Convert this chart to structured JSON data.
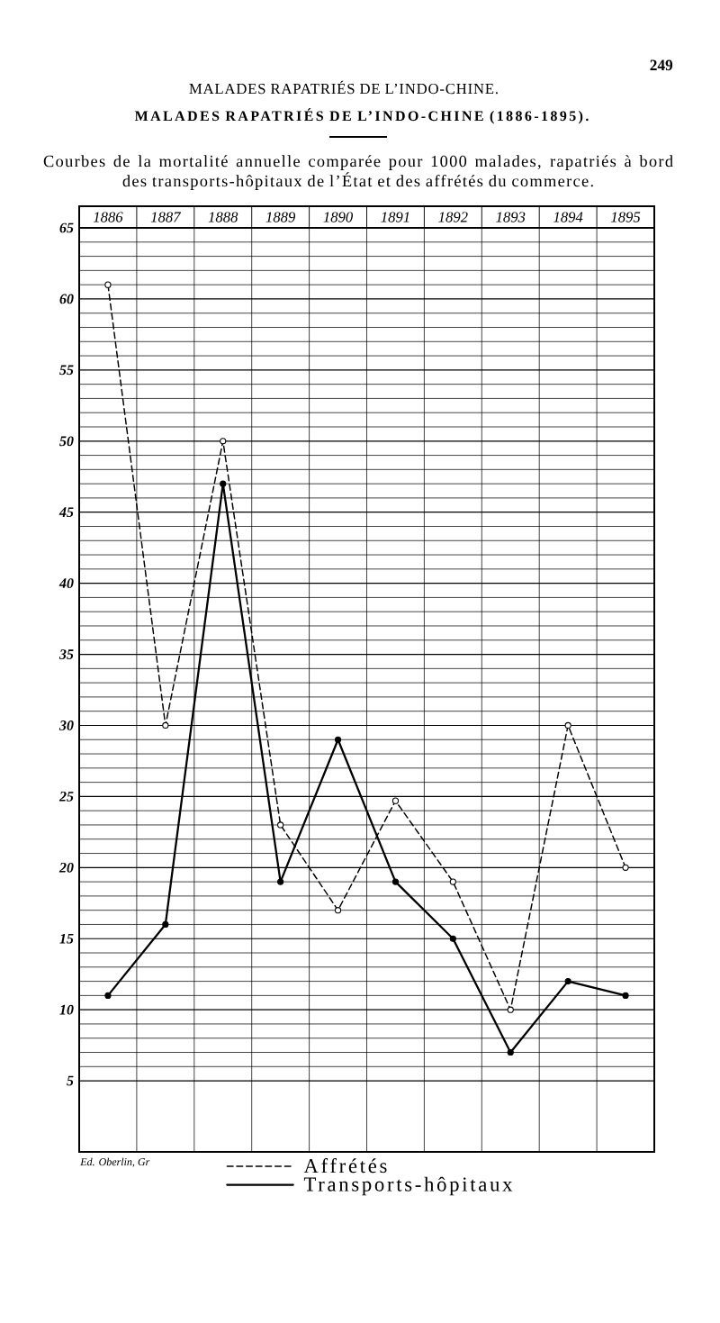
{
  "chart_data": {
    "type": "line",
    "title": "MALADES RAPATRIÉS DE L’INDO-CHINE (1886-1895).",
    "subtitle": "Courbes de la mortalité annuelle comparée pour 1000 malades, rapatriés à bord des transports-hôpitaux de l’État et des affrétés du commerce.",
    "annotations": [
      "MALADES RAPATRIÉS DE L’INDO-CHINE.",
      "249",
      "Ed. Oberlin, Gr"
    ],
    "categories": [
      "1886",
      "1887",
      "1888",
      "1889",
      "1890",
      "1891",
      "1892",
      "1893",
      "1894",
      "1895"
    ],
    "series": [
      {
        "name": "Affrétés",
        "color": "#000000",
        "line_style": "dashed",
        "values": [
          61,
          30,
          50,
          23,
          17,
          24.7,
          19,
          10,
          30,
          20
        ]
      },
      {
        "name": "Transports-hôpitaux",
        "color": "#000000",
        "line_style": "solid",
        "values": [
          11,
          16,
          47,
          19,
          29,
          19,
          15,
          7,
          12,
          11
        ]
      }
    ],
    "ylim": [
      0,
      65
    ],
    "yticks": [
      5,
      10,
      15,
      20,
      25,
      30,
      35,
      40,
      45,
      50,
      55,
      60,
      65
    ],
    "grid": true,
    "legend": "bottom",
    "marker": "circle"
  }
}
